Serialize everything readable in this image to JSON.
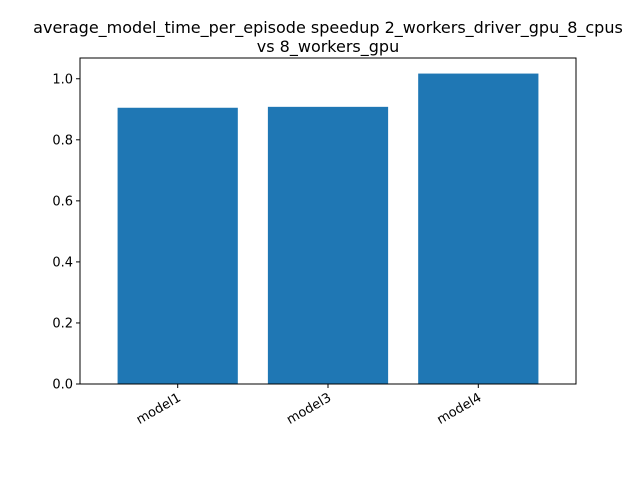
{
  "chart_data": {
    "type": "bar",
    "title_lines": [
      "average_model_time_per_episode speedup 2_workers_driver_gpu_8_cpus",
      "vs 8_workers_gpu"
    ],
    "categories": [
      "model1",
      "model3",
      "model4"
    ],
    "values": [
      0.905,
      0.908,
      1.017
    ],
    "xlabel": "",
    "ylabel": "",
    "ylim": [
      0,
      1.068
    ],
    "yticks": [
      0.0,
      0.2,
      0.4,
      0.6,
      0.8,
      1.0
    ],
    "ytick_labels": [
      "0.0",
      "0.2",
      "0.4",
      "0.6",
      "0.8",
      "1.0"
    ],
    "grid": false,
    "legend": "none",
    "bar_color": "#1f77b4"
  }
}
